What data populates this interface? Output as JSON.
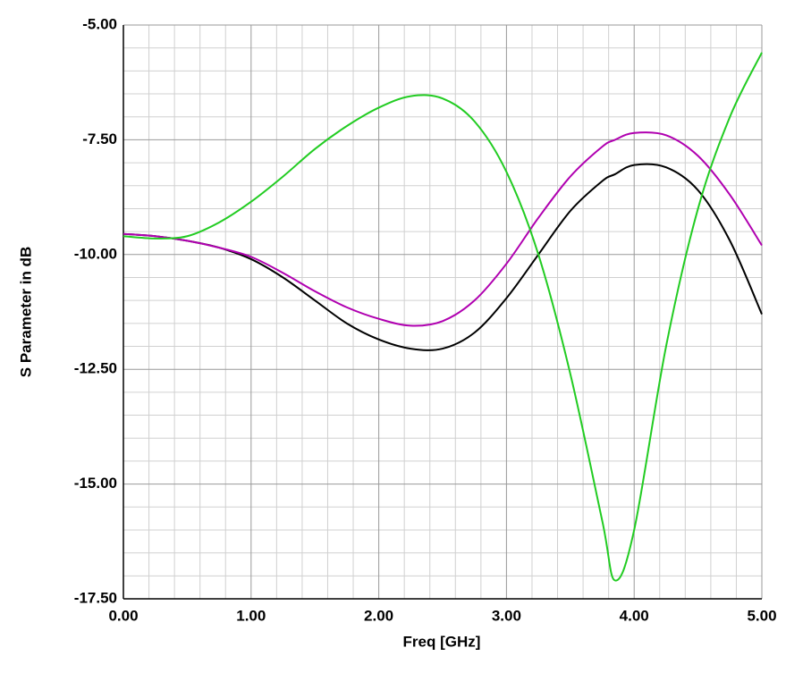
{
  "chart_data": {
    "type": "line",
    "x_label": "Freq [GHz]",
    "y_label": "S Parameter in dB",
    "x": [
      0,
      0.25,
      0.5,
      0.75,
      1.0,
      1.25,
      1.5,
      1.75,
      2.0,
      2.25,
      2.5,
      2.75,
      3.0,
      3.25,
      3.5,
      3.75,
      3.85,
      4.0,
      4.25,
      4.5,
      4.75,
      5.0
    ],
    "series": [
      {
        "color": "#000000",
        "values": [
          -9.55,
          -9.6,
          -9.7,
          -9.85,
          -10.1,
          -10.5,
          -11.0,
          -11.5,
          -11.85,
          -12.05,
          -12.05,
          -11.7,
          -10.95,
          -10.0,
          -9.05,
          -8.4,
          -8.25,
          -8.05,
          -8.1,
          -8.6,
          -9.7,
          -11.3
        ]
      },
      {
        "color": "#b000b0",
        "values": [
          -9.55,
          -9.6,
          -9.7,
          -9.85,
          -10.05,
          -10.4,
          -10.8,
          -11.15,
          -11.4,
          -11.55,
          -11.45,
          -11.0,
          -10.2,
          -9.2,
          -8.3,
          -7.65,
          -7.5,
          -7.35,
          -7.4,
          -7.85,
          -8.7,
          -9.8
        ]
      },
      {
        "color": "#22cc22",
        "values": [
          -9.6,
          -9.65,
          -9.6,
          -9.3,
          -8.85,
          -8.3,
          -7.7,
          -7.2,
          -6.8,
          -6.55,
          -6.6,
          -7.1,
          -8.2,
          -10.0,
          -12.6,
          -15.8,
          -17.1,
          -16.0,
          -12.0,
          -9.0,
          -7.0,
          -5.6
        ]
      }
    ],
    "xlim": [
      0,
      5
    ],
    "ylim": [
      -17.5,
      -5
    ],
    "xticks": [
      {
        "value": 0,
        "label": "0.00"
      },
      {
        "value": 1,
        "label": "1.00"
      },
      {
        "value": 2,
        "label": "2.00"
      },
      {
        "value": 3,
        "label": "3.00"
      },
      {
        "value": 4,
        "label": "4.00"
      },
      {
        "value": 5,
        "label": "5.00"
      }
    ],
    "yticks": [
      {
        "value": -17.5,
        "label": "-17.50"
      },
      {
        "value": -15,
        "label": "-15.00"
      },
      {
        "value": -12.5,
        "label": "-12.50"
      },
      {
        "value": -10,
        "label": "-10.00"
      },
      {
        "value": -7.5,
        "label": "-7.50"
      },
      {
        "value": -5,
        "label": "-5.00"
      }
    ],
    "minor_xticks": [
      0.2,
      0.4,
      0.6,
      0.8,
      1.2,
      1.4,
      1.6,
      1.8,
      2.2,
      2.4,
      2.6,
      2.8,
      3.2,
      3.4,
      3.6,
      3.8,
      4.2,
      4.4,
      4.6,
      4.8
    ],
    "minor_yticks": [
      -17,
      -16.5,
      -16,
      -15.5,
      -14.5,
      -14,
      -13.5,
      -13,
      -12,
      -11.5,
      -11,
      -10.5,
      -9.5,
      -9,
      -8.5,
      -8,
      -7,
      -6.5,
      -6,
      -5.5
    ],
    "grid": true
  }
}
